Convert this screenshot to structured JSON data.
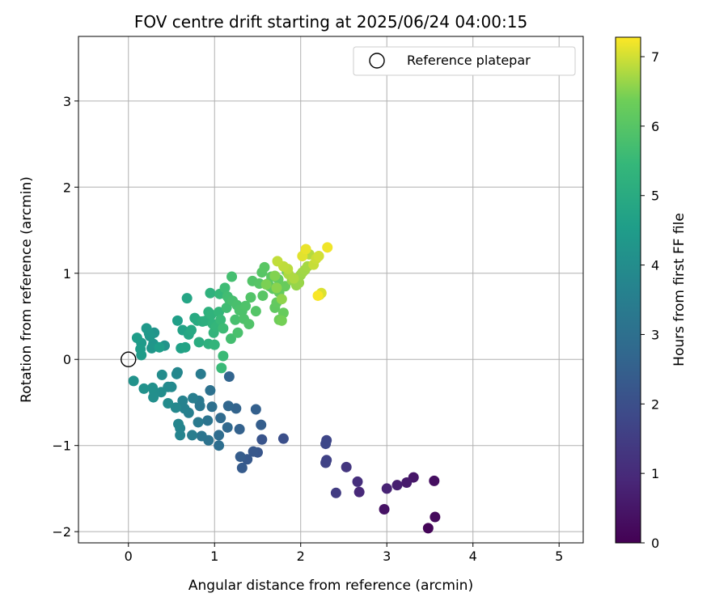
{
  "chart_data": {
    "type": "scatter",
    "title": "FOV centre drift starting at 2025/06/24 04:00:15",
    "xlabel": "Angular distance from reference (arcmin)",
    "ylabel": "Rotation from reference (arcmin)",
    "xlim": [
      -0.58,
      5.28
    ],
    "ylim": [
      -2.13,
      3.75
    ],
    "x_ticks": [
      "0",
      "1",
      "2",
      "3",
      "4",
      "5"
    ],
    "y_ticks": [
      "−2",
      "−1",
      "0",
      "1",
      "2",
      "3"
    ],
    "grid": true,
    "legend": {
      "label": "Reference platepar",
      "placement": "top-right"
    },
    "colorbar": {
      "label": "Hours from first FF file",
      "colormap": "viridis",
      "range": [
        0,
        7.28
      ],
      "ticks": [
        "0",
        "1",
        "2",
        "3",
        "4",
        "5",
        "6",
        "7"
      ]
    },
    "reference": {
      "x": 0,
      "y": 0
    },
    "points": [
      {
        "x": 3.48,
        "y": -1.96,
        "t": 0.1
      },
      {
        "x": 3.56,
        "y": -1.83,
        "t": 0.2
      },
      {
        "x": 3.55,
        "y": -1.41,
        "t": 0.3
      },
      {
        "x": 2.97,
        "y": -1.74,
        "t": 0.4
      },
      {
        "x": 3.31,
        "y": -1.37,
        "t": 0.5
      },
      {
        "x": 3.23,
        "y": -1.43,
        "t": 0.6
      },
      {
        "x": 3.12,
        "y": -1.46,
        "t": 0.7
      },
      {
        "x": 3.0,
        "y": -1.5,
        "t": 0.8
      },
      {
        "x": 2.68,
        "y": -1.54,
        "t": 0.95
      },
      {
        "x": 2.66,
        "y": -1.42,
        "t": 1.1
      },
      {
        "x": 2.53,
        "y": -1.25,
        "t": 1.3
      },
      {
        "x": 2.41,
        "y": -1.55,
        "t": 1.45
      },
      {
        "x": 2.3,
        "y": -1.17,
        "t": 1.6
      },
      {
        "x": 2.29,
        "y": -1.2,
        "t": 1.65
      },
      {
        "x": 2.3,
        "y": -0.94,
        "t": 1.75
      },
      {
        "x": 2.29,
        "y": -0.98,
        "t": 1.8
      },
      {
        "x": 1.8,
        "y": -0.92,
        "t": 2.0
      },
      {
        "x": 1.55,
        "y": -0.93,
        "t": 2.15
      },
      {
        "x": 1.5,
        "y": -1.08,
        "t": 2.2
      },
      {
        "x": 1.45,
        "y": -1.07,
        "t": 2.25
      },
      {
        "x": 1.38,
        "y": -1.16,
        "t": 2.3
      },
      {
        "x": 1.32,
        "y": -1.26,
        "t": 2.35
      },
      {
        "x": 1.3,
        "y": -1.13,
        "t": 2.4
      },
      {
        "x": 1.54,
        "y": -0.76,
        "t": 2.45
      },
      {
        "x": 1.48,
        "y": -0.58,
        "t": 2.5
      },
      {
        "x": 1.29,
        "y": -0.81,
        "t": 2.55
      },
      {
        "x": 1.25,
        "y": -0.57,
        "t": 2.6
      },
      {
        "x": 1.17,
        "y": -0.2,
        "t": 2.65
      },
      {
        "x": 1.16,
        "y": -0.54,
        "t": 2.7
      },
      {
        "x": 1.15,
        "y": -0.79,
        "t": 2.75
      },
      {
        "x": 1.07,
        "y": -0.68,
        "t": 2.85
      },
      {
        "x": 1.05,
        "y": -0.88,
        "t": 2.9
      },
      {
        "x": 1.05,
        "y": -1.0,
        "t": 2.95
      },
      {
        "x": 0.97,
        "y": -0.55,
        "t": 3.0
      },
      {
        "x": 0.95,
        "y": -0.36,
        "t": 3.05
      },
      {
        "x": 0.93,
        "y": -0.94,
        "t": 3.1
      },
      {
        "x": 0.92,
        "y": -0.71,
        "t": 3.15
      },
      {
        "x": 0.85,
        "y": -0.89,
        "t": 3.2
      },
      {
        "x": 0.83,
        "y": -0.54,
        "t": 3.25
      },
      {
        "x": 0.82,
        "y": -0.48,
        "t": 3.3
      },
      {
        "x": 0.81,
        "y": -0.73,
        "t": 3.35
      },
      {
        "x": 0.84,
        "y": -0.17,
        "t": 3.4
      },
      {
        "x": 0.74,
        "y": -0.88,
        "t": 3.45
      },
      {
        "x": 0.75,
        "y": -0.45,
        "t": 3.5
      },
      {
        "x": 0.7,
        "y": -0.62,
        "t": 3.55
      },
      {
        "x": 0.65,
        "y": -0.57,
        "t": 3.6
      },
      {
        "x": 0.63,
        "y": -0.48,
        "t": 3.65
      },
      {
        "x": 0.6,
        "y": -0.8,
        "t": 3.7
      },
      {
        "x": 0.6,
        "y": -0.88,
        "t": 3.72
      },
      {
        "x": 0.58,
        "y": -0.75,
        "t": 3.75
      },
      {
        "x": 0.57,
        "y": -0.15,
        "t": 3.78
      },
      {
        "x": 0.56,
        "y": -0.17,
        "t": 3.8
      },
      {
        "x": 0.55,
        "y": -0.56,
        "t": 3.83
      },
      {
        "x": 0.5,
        "y": -0.32,
        "t": 3.86
      },
      {
        "x": 0.46,
        "y": -0.32,
        "t": 3.9
      },
      {
        "x": 0.46,
        "y": -0.51,
        "t": 3.93
      },
      {
        "x": 0.39,
        "y": -0.18,
        "t": 3.96
      },
      {
        "x": 0.38,
        "y": -0.38,
        "t": 4.0
      },
      {
        "x": 0.3,
        "y": -0.38,
        "t": 4.03
      },
      {
        "x": 0.29,
        "y": -0.44,
        "t": 4.06
      },
      {
        "x": 0.28,
        "y": -0.33,
        "t": 4.1
      },
      {
        "x": 0.18,
        "y": -0.34,
        "t": 4.13
      },
      {
        "x": 0.06,
        "y": -0.25,
        "t": 4.16
      },
      {
        "x": 0.42,
        "y": 0.16,
        "t": 4.2
      },
      {
        "x": 0.3,
        "y": 0.31,
        "t": 4.23
      },
      {
        "x": 0.29,
        "y": 0.18,
        "t": 4.26
      },
      {
        "x": 0.27,
        "y": 0.13,
        "t": 4.3
      },
      {
        "x": 0.25,
        "y": 0.27,
        "t": 4.33
      },
      {
        "x": 0.24,
        "y": 0.3,
        "t": 4.36
      },
      {
        "x": 0.21,
        "y": 0.36,
        "t": 4.4
      },
      {
        "x": 0.15,
        "y": 0.19,
        "t": 4.43
      },
      {
        "x": 0.15,
        "y": 0.05,
        "t": 4.46
      },
      {
        "x": 0.14,
        "y": 0.12,
        "t": 4.5
      },
      {
        "x": 0.1,
        "y": 0.25,
        "t": 4.53
      },
      {
        "x": 0.36,
        "y": 0.14,
        "t": 4.56
      },
      {
        "x": 0.57,
        "y": 0.45,
        "t": 4.6
      },
      {
        "x": 0.61,
        "y": 0.13,
        "t": 4.65
      },
      {
        "x": 0.63,
        "y": 0.34,
        "t": 4.7
      },
      {
        "x": 0.66,
        "y": 0.14,
        "t": 4.75
      },
      {
        "x": 0.68,
        "y": 0.71,
        "t": 4.8
      },
      {
        "x": 0.7,
        "y": 0.29,
        "t": 4.85
      },
      {
        "x": 0.73,
        "y": 0.34,
        "t": 4.9
      },
      {
        "x": 0.77,
        "y": 0.48,
        "t": 4.95
      },
      {
        "x": 0.8,
        "y": 0.45,
        "t": 5.0
      },
      {
        "x": 0.82,
        "y": 0.2,
        "t": 5.05
      },
      {
        "x": 0.86,
        "y": 0.44,
        "t": 5.1
      },
      {
        "x": 0.9,
        "y": 0.45,
        "t": 5.15
      },
      {
        "x": 0.93,
        "y": 0.18,
        "t": 5.2
      },
      {
        "x": 0.93,
        "y": 0.55,
        "t": 5.22
      },
      {
        "x": 0.95,
        "y": 0.77,
        "t": 5.25
      },
      {
        "x": 0.96,
        "y": 0.52,
        "t": 5.28
      },
      {
        "x": 0.98,
        "y": 0.41,
        "t": 5.3
      },
      {
        "x": 0.99,
        "y": 0.31,
        "t": 5.33
      },
      {
        "x": 1.0,
        "y": 0.17,
        "t": 5.36
      },
      {
        "x": 1.02,
        "y": 0.38,
        "t": 5.4
      },
      {
        "x": 1.05,
        "y": 0.55,
        "t": 5.43
      },
      {
        "x": 1.06,
        "y": 0.76,
        "t": 5.46
      },
      {
        "x": 1.07,
        "y": 0.46,
        "t": 5.5
      },
      {
        "x": 1.08,
        "y": -0.1,
        "t": 5.52
      },
      {
        "x": 1.1,
        "y": 0.04,
        "t": 5.55
      },
      {
        "x": 1.1,
        "y": 0.36,
        "t": 5.58
      },
      {
        "x": 1.12,
        "y": 0.83,
        "t": 5.6
      },
      {
        "x": 1.14,
        "y": 0.6,
        "t": 5.63
      },
      {
        "x": 1.15,
        "y": 0.73,
        "t": 5.66
      },
      {
        "x": 1.17,
        "y": 0.7,
        "t": 5.68
      },
      {
        "x": 1.19,
        "y": 0.24,
        "t": 5.7
      },
      {
        "x": 1.2,
        "y": 0.96,
        "t": 5.72
      },
      {
        "x": 1.21,
        "y": 0.68,
        "t": 5.74
      },
      {
        "x": 1.24,
        "y": 0.46,
        "t": 5.76
      },
      {
        "x": 1.26,
        "y": 0.63,
        "t": 5.78
      },
      {
        "x": 1.27,
        "y": 0.31,
        "t": 5.8
      },
      {
        "x": 1.29,
        "y": 0.57,
        "t": 5.82
      },
      {
        "x": 1.32,
        "y": 0.56,
        "t": 5.84
      },
      {
        "x": 1.34,
        "y": 0.47,
        "t": 5.86
      },
      {
        "x": 1.36,
        "y": 0.62,
        "t": 5.88
      },
      {
        "x": 1.4,
        "y": 0.41,
        "t": 5.9
      },
      {
        "x": 1.42,
        "y": 0.72,
        "t": 5.92
      },
      {
        "x": 1.44,
        "y": 0.91,
        "t": 5.94
      },
      {
        "x": 1.48,
        "y": 0.56,
        "t": 5.96
      },
      {
        "x": 1.52,
        "y": 0.88,
        "t": 5.98
      },
      {
        "x": 1.55,
        "y": 1.01,
        "t": 6.0
      },
      {
        "x": 1.56,
        "y": 0.74,
        "t": 6.02
      },
      {
        "x": 1.58,
        "y": 1.07,
        "t": 6.04
      },
      {
        "x": 1.62,
        "y": 0.88,
        "t": 6.06
      },
      {
        "x": 1.64,
        "y": 0.85,
        "t": 6.08
      },
      {
        "x": 1.66,
        "y": 0.96,
        "t": 6.1
      },
      {
        "x": 1.68,
        "y": 0.82,
        "t": 6.12
      },
      {
        "x": 1.7,
        "y": 0.6,
        "t": 6.15
      },
      {
        "x": 1.72,
        "y": 0.66,
        "t": 6.18
      },
      {
        "x": 1.74,
        "y": 0.93,
        "t": 6.2
      },
      {
        "x": 1.75,
        "y": 0.78,
        "t": 6.22
      },
      {
        "x": 1.8,
        "y": 0.54,
        "t": 6.24
      },
      {
        "x": 1.82,
        "y": 0.85,
        "t": 6.26
      },
      {
        "x": 1.84,
        "y": 1.02,
        "t": 6.28
      },
      {
        "x": 1.75,
        "y": 0.46,
        "t": 6.35
      },
      {
        "x": 1.78,
        "y": 0.45,
        "t": 6.4
      },
      {
        "x": 1.6,
        "y": 0.87,
        "t": 6.45
      },
      {
        "x": 1.7,
        "y": 0.97,
        "t": 6.5
      },
      {
        "x": 1.72,
        "y": 0.83,
        "t": 6.55
      },
      {
        "x": 1.78,
        "y": 0.7,
        "t": 6.58
      },
      {
        "x": 1.9,
        "y": 0.92,
        "t": 6.6
      },
      {
        "x": 1.95,
        "y": 0.86,
        "t": 6.62
      },
      {
        "x": 1.98,
        "y": 0.89,
        "t": 6.64
      },
      {
        "x": 2.0,
        "y": 0.98,
        "t": 6.66
      },
      {
        "x": 2.02,
        "y": 1.01,
        "t": 6.68
      },
      {
        "x": 2.05,
        "y": 1.04,
        "t": 6.7
      },
      {
        "x": 2.08,
        "y": 1.08,
        "t": 6.72
      },
      {
        "x": 1.86,
        "y": 0.99,
        "t": 6.75
      },
      {
        "x": 1.92,
        "y": 0.94,
        "t": 6.78
      },
      {
        "x": 2.1,
        "y": 1.22,
        "t": 6.82
      },
      {
        "x": 1.85,
        "y": 1.05,
        "t": 6.85
      },
      {
        "x": 1.8,
        "y": 1.08,
        "t": 6.88
      },
      {
        "x": 1.73,
        "y": 1.14,
        "t": 6.9
      },
      {
        "x": 2.15,
        "y": 1.1,
        "t": 6.93
      },
      {
        "x": 2.18,
        "y": 1.17,
        "t": 6.96
      },
      {
        "x": 2.21,
        "y": 1.2,
        "t": 7.0
      },
      {
        "x": 2.22,
        "y": 0.75,
        "t": 7.03
      },
      {
        "x": 2.24,
        "y": 0.77,
        "t": 7.06
      },
      {
        "x": 2.02,
        "y": 1.2,
        "t": 7.1
      },
      {
        "x": 2.06,
        "y": 1.28,
        "t": 7.15
      },
      {
        "x": 2.31,
        "y": 1.3,
        "t": 7.2
      },
      {
        "x": 2.2,
        "y": 0.74,
        "t": 7.25
      }
    ]
  }
}
